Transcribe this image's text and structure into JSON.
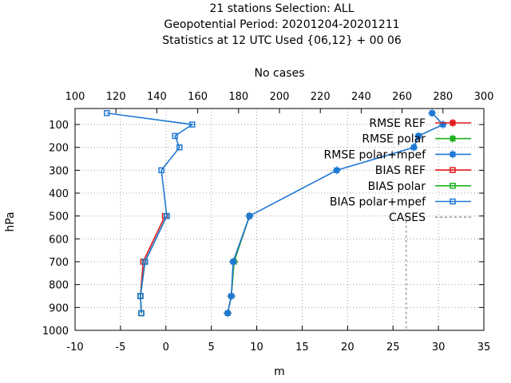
{
  "chart_data": {
    "type": "line",
    "title": [
      "21 stations Selection: ALL",
      "Geopotential  Period: 20201204-20201211",
      "Statistics at 12 UTC  Used {06,12} + 00 06"
    ],
    "xlabel": "m",
    "ylabel": "hPa",
    "x2label": "No cases",
    "xlim": [
      -10,
      35
    ],
    "x_ticks": [
      "-10",
      "-5",
      "0",
      "5",
      "10",
      "15",
      "20",
      "25",
      "30",
      "35"
    ],
    "x2lim": [
      100,
      300
    ],
    "x2_ticks": [
      "100",
      "120",
      "140",
      "160",
      "180",
      "200",
      "220",
      "240",
      "260",
      "280",
      "300"
    ],
    "ylim": [
      1000,
      30
    ],
    "y_ticks": [
      "100",
      "200",
      "300",
      "400",
      "500",
      "600",
      "700",
      "800",
      "900",
      "1000"
    ],
    "grid": true,
    "legend_position": "top-right",
    "series": [
      {
        "name": "RMSE REF",
        "color": "#e41a1c",
        "marker": "filled-square",
        "axis": "m",
        "points": [
          [
            6.8,
            925
          ],
          [
            7.2,
            850
          ],
          [
            7.5,
            700
          ],
          [
            9.2,
            500
          ]
        ]
      },
      {
        "name": "RMSE polar",
        "color": "#1fb01f",
        "marker": "filled-square",
        "axis": "m",
        "points": [
          [
            6.8,
            925
          ],
          [
            7.2,
            850
          ],
          [
            7.5,
            700
          ],
          [
            9.2,
            500
          ]
        ]
      },
      {
        "name": "RMSE polar+mpef",
        "color": "#1f78d4",
        "marker": "filled-square",
        "axis": "m",
        "points": [
          [
            6.8,
            925
          ],
          [
            7.2,
            850
          ],
          [
            7.4,
            700
          ],
          [
            9.2,
            500
          ],
          [
            18.8,
            300
          ],
          [
            27.3,
            200
          ],
          [
            27.8,
            150
          ],
          [
            30.5,
            100
          ],
          [
            29.3,
            50
          ]
        ]
      },
      {
        "name": "BIAS REF",
        "color": "#e41a1c",
        "marker": "open-square",
        "axis": "m",
        "points": [
          [
            -2.7,
            925
          ],
          [
            -2.8,
            850
          ],
          [
            -2.5,
            700
          ],
          [
            -0.1,
            500
          ]
        ]
      },
      {
        "name": "BIAS polar",
        "color": "#1fb01f",
        "marker": "open-square",
        "axis": "m",
        "points": [
          [
            -2.7,
            925
          ],
          [
            -2.8,
            850
          ],
          [
            -2.3,
            700
          ],
          [
            0.1,
            500
          ]
        ]
      },
      {
        "name": "BIAS polar+mpef",
        "color": "#1f78d4",
        "marker": "open-square",
        "axis": "m",
        "points": [
          [
            -2.7,
            925
          ],
          [
            -2.8,
            850
          ],
          [
            -2.3,
            700
          ],
          [
            0.1,
            500
          ],
          [
            -0.5,
            300
          ],
          [
            1.5,
            200
          ],
          [
            1.0,
            150
          ],
          [
            2.9,
            100
          ],
          [
            -6.5,
            50
          ]
        ]
      },
      {
        "name": "CASES",
        "color": "#a0a0a0",
        "marker": "none",
        "dash": true,
        "axis": "cases",
        "points": [
          [
            262,
            500
          ],
          [
            262,
            600
          ],
          [
            262,
            700
          ],
          [
            262,
            800
          ],
          [
            262,
            900
          ],
          [
            262,
            1000
          ]
        ]
      }
    ]
  }
}
